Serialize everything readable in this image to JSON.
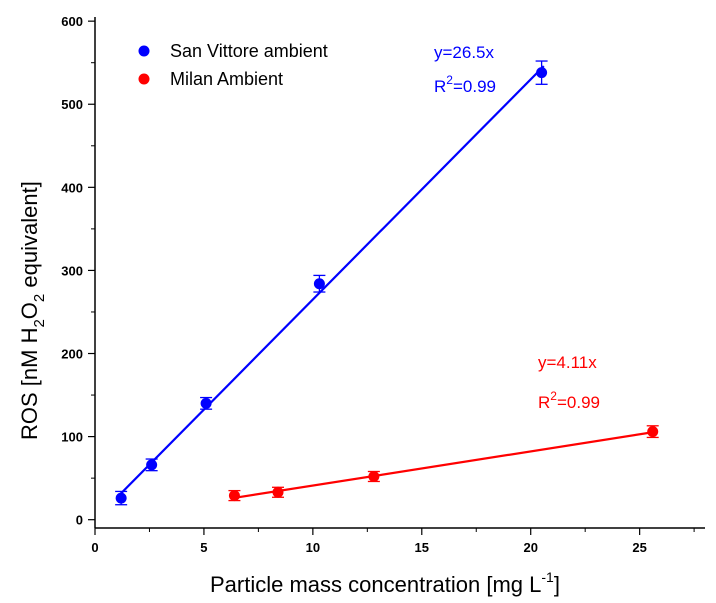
{
  "chart_data": {
    "type": "scatter",
    "xlabel": {
      "main": "Particle mass concentration [mg L",
      "sup": "-1",
      "end": "]"
    },
    "ylabel": {
      "p1": "ROS [nM H",
      "sub1": "2",
      "p2": "O",
      "sub2": "2",
      "p3": " equivalent]"
    },
    "xlim": [
      0,
      28
    ],
    "ylim": [
      -10,
      605
    ],
    "x_ticks": [
      0,
      5,
      10,
      15,
      20,
      25
    ],
    "y_ticks": [
      0,
      100,
      200,
      300,
      400,
      500,
      600
    ],
    "x_tick_labels": [
      "0",
      "5",
      "10",
      "15",
      "20",
      "25"
    ],
    "y_tick_labels": [
      "0",
      "100",
      "200",
      "300",
      "400",
      "500",
      "600"
    ],
    "grid": false,
    "legend_position": "top-left",
    "series": [
      {
        "name": "San Vittore ambient",
        "color": "#0000ff",
        "points": [
          {
            "x": 1.2,
            "y": 26,
            "err": 8
          },
          {
            "x": 2.6,
            "y": 66,
            "err": 7
          },
          {
            "x": 5.1,
            "y": 140,
            "err": 7
          },
          {
            "x": 10.3,
            "y": 284,
            "err": 10
          },
          {
            "x": 20.5,
            "y": 538,
            "err": 14
          }
        ],
        "fit": {
          "slope": 26.5,
          "x_range": [
            1.0,
            20.6
          ]
        },
        "equation": "y=26.5x",
        "r2_prefix": "R",
        "r2_sup": "2",
        "r2_value": "=0.99"
      },
      {
        "name": "Milan Ambient",
        "color": "#ff0000",
        "points": [
          {
            "x": 6.4,
            "y": 29,
            "err": 6
          },
          {
            "x": 8.4,
            "y": 33,
            "err": 6
          },
          {
            "x": 12.8,
            "y": 52,
            "err": 6
          },
          {
            "x": 25.6,
            "y": 106,
            "err": 7
          }
        ],
        "fit": {
          "slope": 4.11,
          "x_range": [
            6.3,
            25.6
          ]
        },
        "equation": "y=4.11x",
        "r2_prefix": "R",
        "r2_sup": "2",
        "r2_value": "=0.99"
      }
    ]
  }
}
